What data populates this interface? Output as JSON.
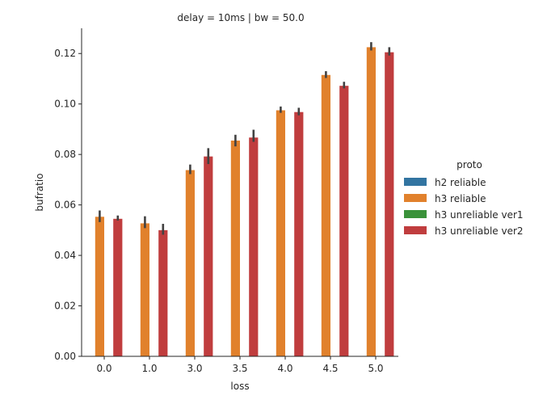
{
  "chart_data": {
    "type": "bar",
    "title": "delay = 10ms | bw = 50.0",
    "xlabel": "loss",
    "ylabel": "bufratio",
    "categories": [
      "0.0",
      "1.0",
      "3.0",
      "3.5",
      "4.0",
      "4.5",
      "5.0"
    ],
    "ylim": [
      0,
      0.13
    ],
    "yticks": [
      "0.00",
      "0.02",
      "0.04",
      "0.06",
      "0.08",
      "0.10",
      "0.12"
    ],
    "grid": false,
    "legend": {
      "title": "proto",
      "placement": "right"
    },
    "series": [
      {
        "name": "h2 reliable",
        "color": "#3274a1",
        "values": [
          null,
          null,
          null,
          null,
          null,
          null,
          null
        ],
        "err_low": [
          null,
          null,
          null,
          null,
          null,
          null,
          null
        ],
        "err_high": [
          null,
          null,
          null,
          null,
          null,
          null,
          null
        ]
      },
      {
        "name": "h3 reliable",
        "color": "#e1812c",
        "values": [
          0.0553,
          0.0527,
          0.0738,
          0.0855,
          0.0975,
          0.1115,
          0.1225
        ],
        "err_low": [
          0.0532,
          0.0508,
          0.0722,
          0.0832,
          0.0965,
          0.1103,
          0.1212
        ],
        "err_high": [
          0.0578,
          0.0555,
          0.076,
          0.0878,
          0.099,
          0.113,
          0.1245
        ]
      },
      {
        "name": "h3 unreliable ver1",
        "color": "#3a923a",
        "values": [
          null,
          null,
          null,
          null,
          null,
          null,
          null
        ],
        "err_low": [
          null,
          null,
          null,
          null,
          null,
          null,
          null
        ],
        "err_high": [
          null,
          null,
          null,
          null,
          null,
          null,
          null
        ]
      },
      {
        "name": "h3 unreliable ver2",
        "color": "#c03d3e",
        "values": [
          0.0545,
          0.05,
          0.0792,
          0.0867,
          0.0968,
          0.1072,
          0.1205
        ],
        "err_low": [
          0.0538,
          0.0482,
          0.0762,
          0.085,
          0.0955,
          0.1062,
          0.1192
        ],
        "err_high": [
          0.0558,
          0.0525,
          0.0825,
          0.0898,
          0.0985,
          0.1088,
          0.1225
        ]
      }
    ]
  }
}
